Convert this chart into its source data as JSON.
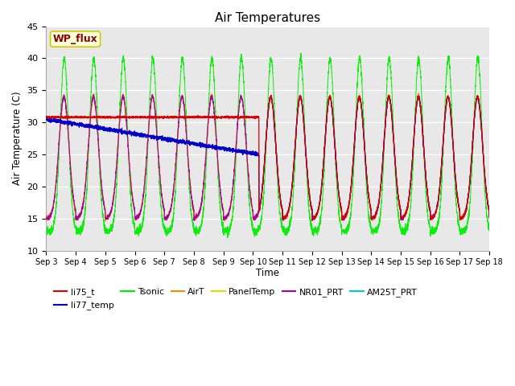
{
  "title": "Air Temperatures",
  "xlabel": "Time",
  "ylabel": "Air Temperature (C)",
  "ylim": [
    10,
    45
  ],
  "bg_color": "#e8e8e8",
  "annotation_text": "WP_flux",
  "annotation_color": "#8b0000",
  "annotation_bg": "#ffffdd",
  "annotation_edge": "#cccc00",
  "series_colors": {
    "li75_t": "#dd0000",
    "li77_temp": "#0000cc",
    "Tsonic": "#00ee00",
    "AirT": "#ff8800",
    "PanelTemp": "#dddd00",
    "NR01_PRT": "#aa00aa",
    "AM25T_PRT": "#00cccc"
  },
  "legend_entries": [
    "li75_t",
    "li77_temp",
    "Tsonic",
    "AirT",
    "PanelTemp",
    "NR01_PRT",
    "AM25T_PRT"
  ],
  "yticks": [
    10,
    15,
    20,
    25,
    30,
    35,
    40,
    45
  ],
  "days": 15,
  "pts_per_day": 288
}
